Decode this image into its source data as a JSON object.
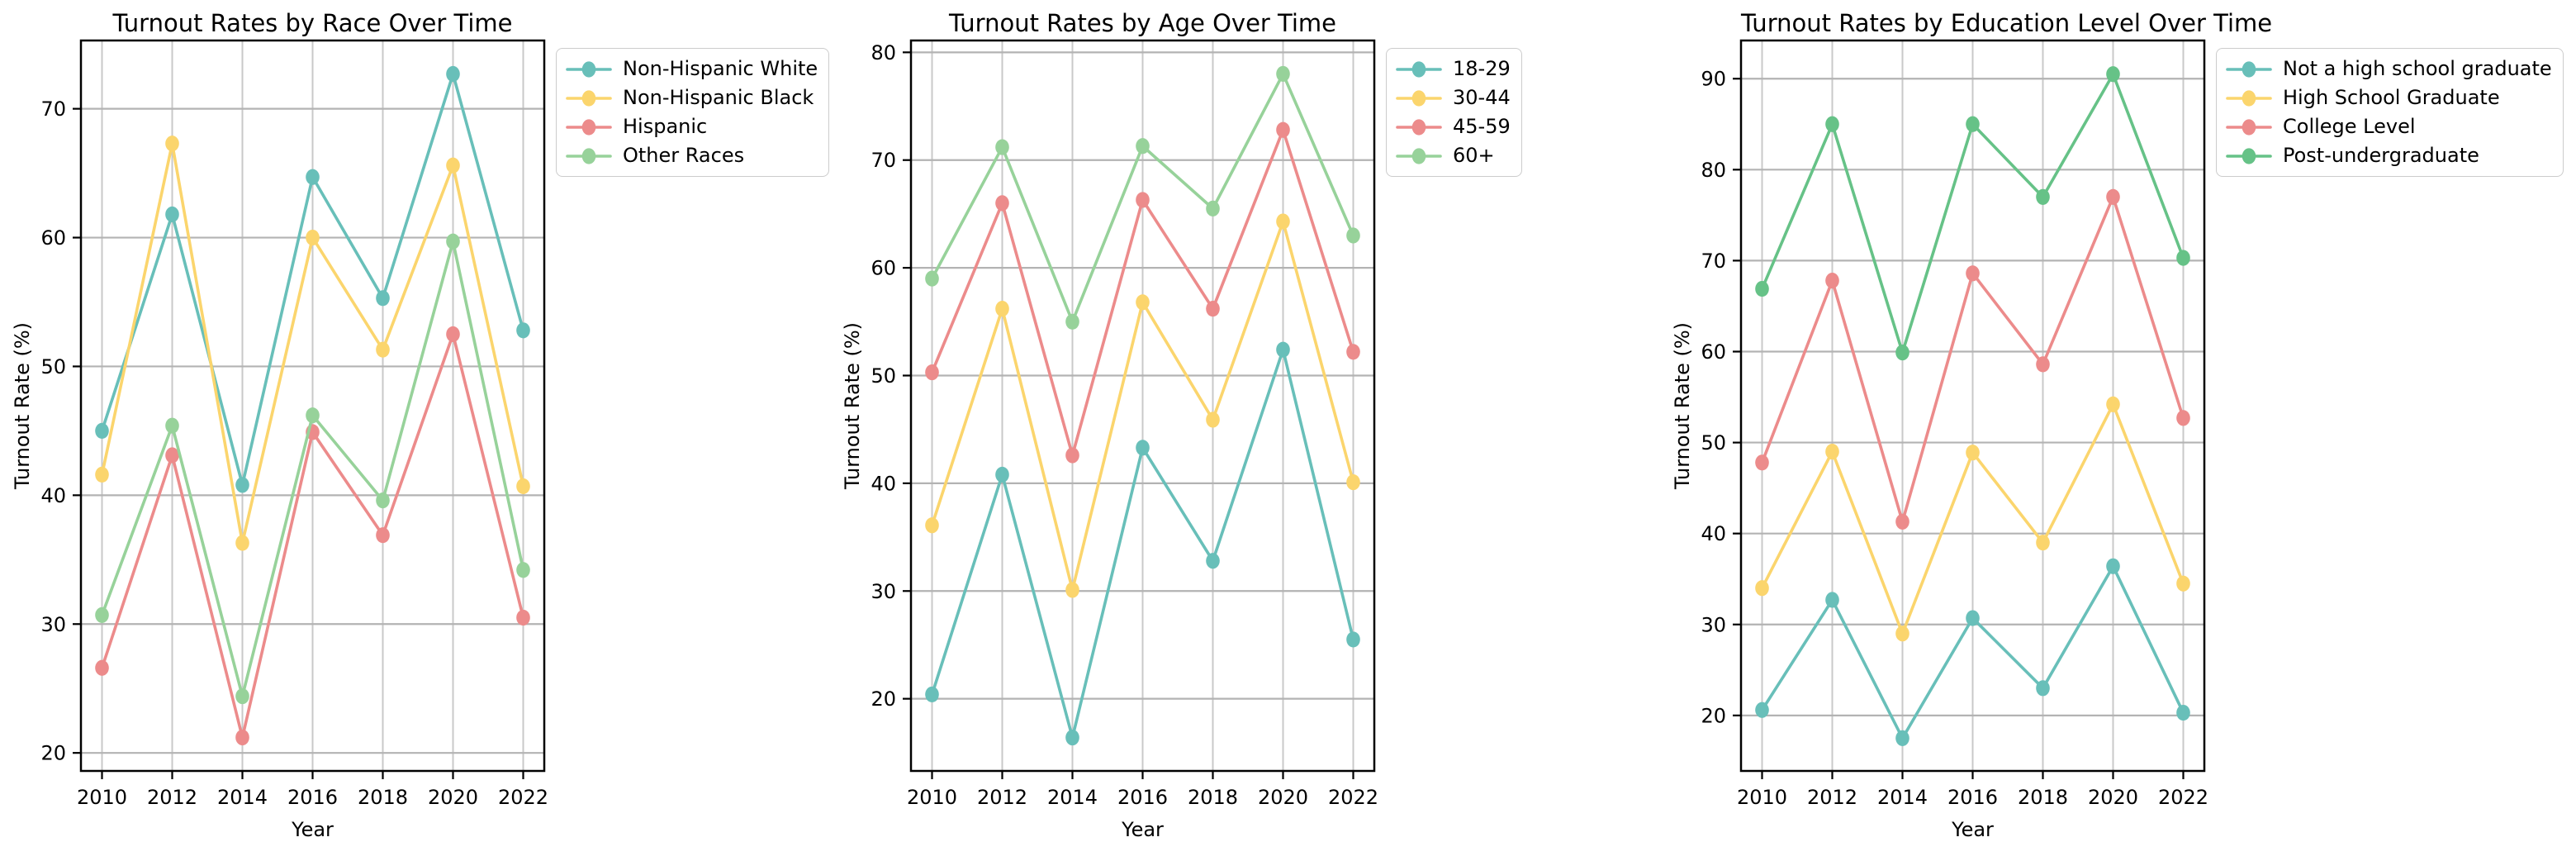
{
  "figure": {
    "background": "#ffffff",
    "spine_color": "#000000",
    "h_grid_color": "#b3b3b3",
    "v_grid_color": "#c9c9c9",
    "tick_text_color": "#000000",
    "legend_border_color": "#cccccc"
  },
  "chart_data": [
    {
      "type": "line",
      "title": "Turnout Rates by Race Over Time",
      "xlabel": "Year",
      "ylabel": "Turnout Rate (%)",
      "x": [
        2010,
        2012,
        2014,
        2016,
        2018,
        2020,
        2022
      ],
      "xlim": [
        2009.4,
        2022.6
      ],
      "ylim": [
        18.6,
        75.3
      ],
      "yticks": [
        20,
        30,
        40,
        50,
        60,
        70
      ],
      "grid": true,
      "legend_position": "outside-upper-right",
      "marker": "o",
      "series": [
        {
          "name": "Non-Hispanic White",
          "color": "#68bfb9",
          "values": [
            45.0,
            61.8,
            40.8,
            64.7,
            55.3,
            72.7,
            52.8
          ]
        },
        {
          "name": "Non-Hispanic Black",
          "color": "#fbd56d",
          "values": [
            41.6,
            67.3,
            36.3,
            60.0,
            51.3,
            65.6,
            40.7
          ]
        },
        {
          "name": "Hispanic",
          "color": "#ec8b8b",
          "values": [
            26.6,
            43.1,
            21.2,
            44.9,
            36.9,
            52.5,
            30.5
          ]
        },
        {
          "name": "Other Races",
          "color": "#97d29a",
          "values": [
            30.7,
            45.4,
            24.4,
            46.2,
            39.6,
            59.7,
            34.2
          ]
        }
      ]
    },
    {
      "type": "line",
      "title": "Turnout Rates by Age Over Time",
      "xlabel": "Year",
      "ylabel": "Turnout Rate (%)",
      "x": [
        2010,
        2012,
        2014,
        2016,
        2018,
        2020,
        2022
      ],
      "xlim": [
        2009.4,
        2022.6
      ],
      "ylim": [
        13.3,
        81.1
      ],
      "yticks": [
        20,
        30,
        40,
        50,
        60,
        70,
        80
      ],
      "grid": true,
      "legend_position": "outside-upper-right",
      "marker": "o",
      "series": [
        {
          "name": "18-29",
          "color": "#68bfb9",
          "values": [
            20.4,
            40.8,
            16.4,
            43.3,
            32.8,
            52.4,
            25.5
          ]
        },
        {
          "name": "30-44",
          "color": "#fbd56d",
          "values": [
            36.1,
            56.2,
            30.1,
            56.8,
            45.9,
            64.3,
            40.1
          ]
        },
        {
          "name": "45-59",
          "color": "#ec8b8b",
          "values": [
            50.3,
            66.0,
            42.6,
            66.3,
            56.2,
            72.8,
            52.2
          ]
        },
        {
          "name": "60+",
          "color": "#97d29a",
          "values": [
            59.0,
            71.2,
            55.0,
            71.3,
            65.5,
            78.0,
            63.0
          ]
        }
      ]
    },
    {
      "type": "line",
      "title": "Turnout Rates by Education Level Over Time",
      "xlabel": "Year",
      "ylabel": "Turnout Rate (%)",
      "x": [
        2010,
        2012,
        2014,
        2016,
        2018,
        2020,
        2022
      ],
      "xlim": [
        2009.4,
        2022.6
      ],
      "ylim": [
        13.9,
        94.2
      ],
      "yticks": [
        20,
        30,
        40,
        50,
        60,
        70,
        80,
        90
      ],
      "grid": true,
      "legend_position": "outside-upper-right",
      "marker": "o",
      "series": [
        {
          "name": "Not a high school graduate",
          "color": "#68bfb9",
          "values": [
            20.6,
            32.7,
            17.5,
            30.7,
            23.0,
            36.4,
            20.3
          ]
        },
        {
          "name": "High School Graduate",
          "color": "#fbd56d",
          "values": [
            34.0,
            49.0,
            29.0,
            48.9,
            39.0,
            54.2,
            34.5
          ]
        },
        {
          "name": "College Level",
          "color": "#ec8b8b",
          "values": [
            47.8,
            67.8,
            41.3,
            68.6,
            58.6,
            77.0,
            52.7
          ]
        },
        {
          "name": "Post-undergraduate",
          "color": "#66c287",
          "values": [
            66.9,
            85.0,
            59.9,
            85.0,
            77.0,
            90.5,
            70.3
          ]
        }
      ]
    }
  ]
}
